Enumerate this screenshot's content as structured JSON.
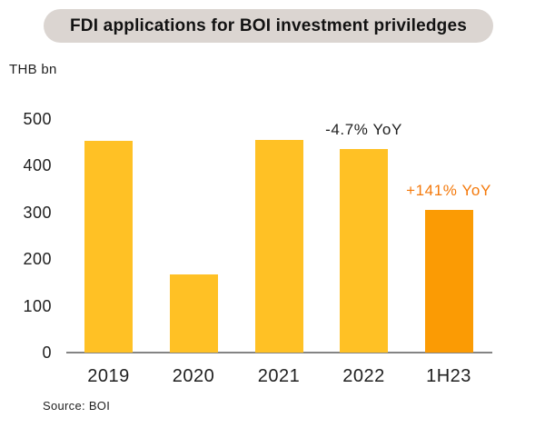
{
  "title": "FDI applications for BOI investment priviledges",
  "axis_unit_label": "THB bn",
  "source": "Source: BOI",
  "colors": {
    "bar_yellow": "#FFC125",
    "bar_orange": "#FB9B04",
    "annotation_negative": "#1F1F1F",
    "annotation_positive": "#F4790B",
    "title_pill_bg": "#DBD5D1",
    "axis_line": "#848484"
  },
  "chart_data": {
    "type": "bar",
    "categories": [
      "2019",
      "2020",
      "2021",
      "2022",
      "1H23"
    ],
    "values": [
      452,
      167,
      455,
      434,
      304
    ],
    "bar_colors": [
      "#FFC125",
      "#FFC125",
      "#FFC125",
      "#FFC125",
      "#FB9B04"
    ],
    "title": "FDI applications for BOI investment priviledges",
    "xlabel": "",
    "ylabel": "THB bn",
    "ylim": [
      0,
      550
    ],
    "yticks": [
      0,
      100,
      200,
      300,
      400,
      500
    ],
    "grid": false,
    "legend": "none",
    "annotations": [
      {
        "text": "-4.7% YoY",
        "target_category": "2022",
        "color": "#1F1F1F"
      },
      {
        "text": "+141% YoY",
        "target_category": "1H23",
        "color": "#F4790B"
      }
    ]
  }
}
